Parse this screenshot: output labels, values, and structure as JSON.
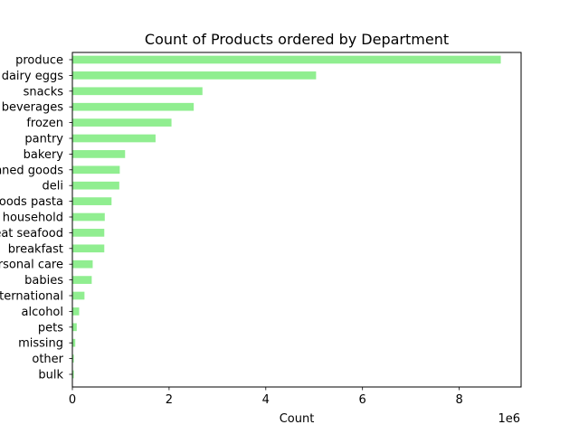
{
  "chart_data": {
    "type": "bar",
    "orientation": "horizontal",
    "title": "Count of Products ordered by Department",
    "xlabel": "Count",
    "ylabel": "",
    "x_scale_label": "1e6",
    "x_ticks": [
      0,
      2,
      4,
      6,
      8
    ],
    "xlim": [
      0,
      9.28
    ],
    "grid": false,
    "legend": "none",
    "bar_color": "#90ee90",
    "categories": [
      "produce",
      "dairy eggs",
      "snacks",
      "beverages",
      "frozen",
      "pantry",
      "bakery",
      "canned goods",
      "deli",
      "dry goods pasta",
      "household",
      "meat seafood",
      "breakfast",
      "personal care",
      "babies",
      "international",
      "alcohol",
      "pets",
      "missing",
      "other",
      "bulk"
    ],
    "values": [
      8.86,
      5.04,
      2.69,
      2.51,
      2.05,
      1.72,
      1.09,
      0.98,
      0.97,
      0.81,
      0.67,
      0.66,
      0.66,
      0.42,
      0.4,
      0.25,
      0.14,
      0.09,
      0.06,
      0.03,
      0.03
    ]
  }
}
